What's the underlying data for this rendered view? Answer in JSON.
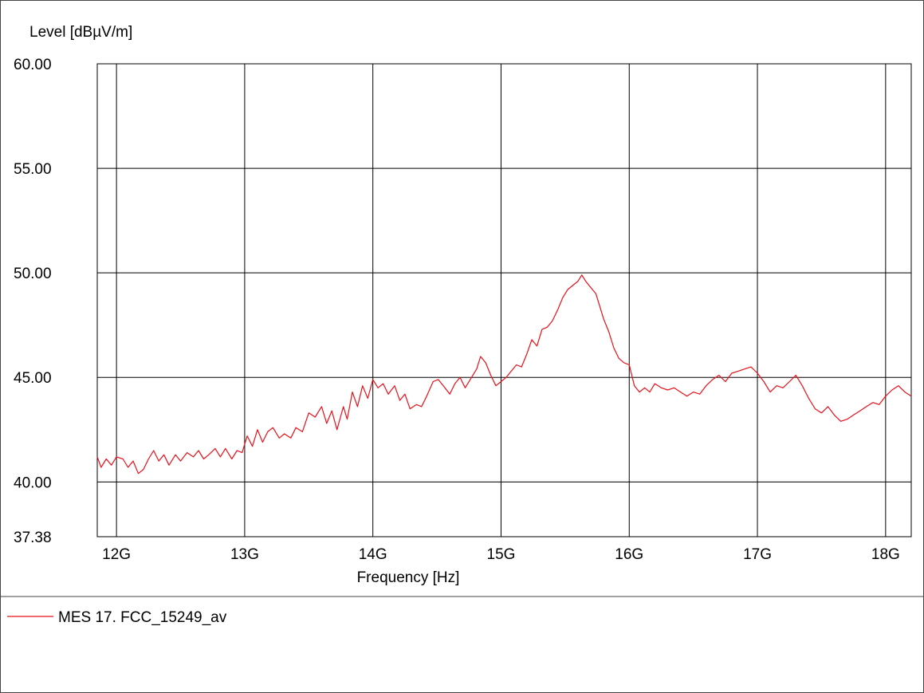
{
  "chart_data": {
    "type": "line",
    "title": "",
    "xlabel": "Frequency [Hz]",
    "ylabel": "Level [dBµV/m]",
    "xlim": [
      11.85,
      18.2
    ],
    "ylim": [
      37.38,
      60.0
    ],
    "grid": true,
    "x_ticks": [
      {
        "value": 12,
        "label": "12G"
      },
      {
        "value": 13,
        "label": "13G"
      },
      {
        "value": 14,
        "label": "14G"
      },
      {
        "value": 15,
        "label": "15G"
      },
      {
        "value": 16,
        "label": "16G"
      },
      {
        "value": 17,
        "label": "17G"
      },
      {
        "value": 18,
        "label": "18G"
      }
    ],
    "y_ticks": [
      {
        "value": 60.0,
        "label": "60.00"
      },
      {
        "value": 55.0,
        "label": "55.00"
      },
      {
        "value": 50.0,
        "label": "50.00"
      },
      {
        "value": 45.0,
        "label": "45.00"
      },
      {
        "value": 40.0,
        "label": "40.00"
      },
      {
        "value": 37.38,
        "label": "37.38"
      }
    ],
    "legend_position": "bottom-left",
    "series": [
      {
        "name": "MES  17. FCC_15249_av",
        "color": "#e8101a",
        "points": [
          [
            11.85,
            41.2
          ],
          [
            11.88,
            40.7
          ],
          [
            11.92,
            41.1
          ],
          [
            11.96,
            40.8
          ],
          [
            12.0,
            41.2
          ],
          [
            12.05,
            41.1
          ],
          [
            12.09,
            40.7
          ],
          [
            12.13,
            41.0
          ],
          [
            12.17,
            40.4
          ],
          [
            12.21,
            40.6
          ],
          [
            12.25,
            41.1
          ],
          [
            12.29,
            41.5
          ],
          [
            12.33,
            41.0
          ],
          [
            12.37,
            41.3
          ],
          [
            12.41,
            40.8
          ],
          [
            12.46,
            41.3
          ],
          [
            12.5,
            41.0
          ],
          [
            12.55,
            41.4
          ],
          [
            12.6,
            41.2
          ],
          [
            12.64,
            41.5
          ],
          [
            12.68,
            41.1
          ],
          [
            12.72,
            41.3
          ],
          [
            12.77,
            41.6
          ],
          [
            12.81,
            41.2
          ],
          [
            12.85,
            41.6
          ],
          [
            12.9,
            41.1
          ],
          [
            12.94,
            41.5
          ],
          [
            12.98,
            41.4
          ],
          [
            13.02,
            42.2
          ],
          [
            13.06,
            41.7
          ],
          [
            13.1,
            42.5
          ],
          [
            13.14,
            41.9
          ],
          [
            13.18,
            42.4
          ],
          [
            13.22,
            42.6
          ],
          [
            13.27,
            42.1
          ],
          [
            13.31,
            42.3
          ],
          [
            13.36,
            42.1
          ],
          [
            13.4,
            42.6
          ],
          [
            13.45,
            42.4
          ],
          [
            13.5,
            43.3
          ],
          [
            13.55,
            43.1
          ],
          [
            13.6,
            43.6
          ],
          [
            13.64,
            42.8
          ],
          [
            13.68,
            43.4
          ],
          [
            13.72,
            42.5
          ],
          [
            13.77,
            43.6
          ],
          [
            13.8,
            43.0
          ],
          [
            13.84,
            44.3
          ],
          [
            13.88,
            43.6
          ],
          [
            13.92,
            44.6
          ],
          [
            13.96,
            44.0
          ],
          [
            14.0,
            44.9
          ],
          [
            14.04,
            44.5
          ],
          [
            14.08,
            44.7
          ],
          [
            14.12,
            44.2
          ],
          [
            14.17,
            44.6
          ],
          [
            14.21,
            43.9
          ],
          [
            14.25,
            44.2
          ],
          [
            14.29,
            43.5
          ],
          [
            14.34,
            43.7
          ],
          [
            14.38,
            43.6
          ],
          [
            14.42,
            44.1
          ],
          [
            14.47,
            44.8
          ],
          [
            14.51,
            44.9
          ],
          [
            14.55,
            44.6
          ],
          [
            14.6,
            44.2
          ],
          [
            14.64,
            44.7
          ],
          [
            14.68,
            45.0
          ],
          [
            14.72,
            44.5
          ],
          [
            14.77,
            45.0
          ],
          [
            14.81,
            45.4
          ],
          [
            14.84,
            46.0
          ],
          [
            14.88,
            45.7
          ],
          [
            14.92,
            45.1
          ],
          [
            14.96,
            44.6
          ],
          [
            15.0,
            44.8
          ],
          [
            15.04,
            45.0
          ],
          [
            15.08,
            45.3
          ],
          [
            15.12,
            45.6
          ],
          [
            15.16,
            45.5
          ],
          [
            15.2,
            46.1
          ],
          [
            15.24,
            46.8
          ],
          [
            15.28,
            46.5
          ],
          [
            15.32,
            47.3
          ],
          [
            15.36,
            47.4
          ],
          [
            15.4,
            47.7
          ],
          [
            15.44,
            48.2
          ],
          [
            15.48,
            48.8
          ],
          [
            15.52,
            49.2
          ],
          [
            15.56,
            49.4
          ],
          [
            15.6,
            49.6
          ],
          [
            15.63,
            49.9
          ],
          [
            15.66,
            49.6
          ],
          [
            15.7,
            49.3
          ],
          [
            15.74,
            49.0
          ],
          [
            15.77,
            48.4
          ],
          [
            15.8,
            47.8
          ],
          [
            15.84,
            47.2
          ],
          [
            15.88,
            46.4
          ],
          [
            15.92,
            45.9
          ],
          [
            15.96,
            45.7
          ],
          [
            16.0,
            45.6
          ],
          [
            16.04,
            44.6
          ],
          [
            16.08,
            44.3
          ],
          [
            16.12,
            44.5
          ],
          [
            16.16,
            44.3
          ],
          [
            16.2,
            44.7
          ],
          [
            16.25,
            44.5
          ],
          [
            16.3,
            44.4
          ],
          [
            16.35,
            44.5
          ],
          [
            16.4,
            44.3
          ],
          [
            16.45,
            44.1
          ],
          [
            16.5,
            44.3
          ],
          [
            16.55,
            44.2
          ],
          [
            16.6,
            44.6
          ],
          [
            16.65,
            44.9
          ],
          [
            16.7,
            45.1
          ],
          [
            16.75,
            44.8
          ],
          [
            16.8,
            45.2
          ],
          [
            16.85,
            45.3
          ],
          [
            16.9,
            45.4
          ],
          [
            16.95,
            45.5
          ],
          [
            17.0,
            45.2
          ],
          [
            17.05,
            44.8
          ],
          [
            17.1,
            44.3
          ],
          [
            17.15,
            44.6
          ],
          [
            17.2,
            44.5
          ],
          [
            17.25,
            44.8
          ],
          [
            17.3,
            45.1
          ],
          [
            17.35,
            44.6
          ],
          [
            17.4,
            44.0
          ],
          [
            17.45,
            43.5
          ],
          [
            17.5,
            43.3
          ],
          [
            17.55,
            43.6
          ],
          [
            17.6,
            43.2
          ],
          [
            17.65,
            42.9
          ],
          [
            17.7,
            43.0
          ],
          [
            17.75,
            43.2
          ],
          [
            17.8,
            43.4
          ],
          [
            17.85,
            43.6
          ],
          [
            17.9,
            43.8
          ],
          [
            17.95,
            43.7
          ],
          [
            18.0,
            44.1
          ],
          [
            18.05,
            44.4
          ],
          [
            18.1,
            44.6
          ],
          [
            18.15,
            44.3
          ],
          [
            18.2,
            44.1
          ]
        ]
      }
    ]
  }
}
